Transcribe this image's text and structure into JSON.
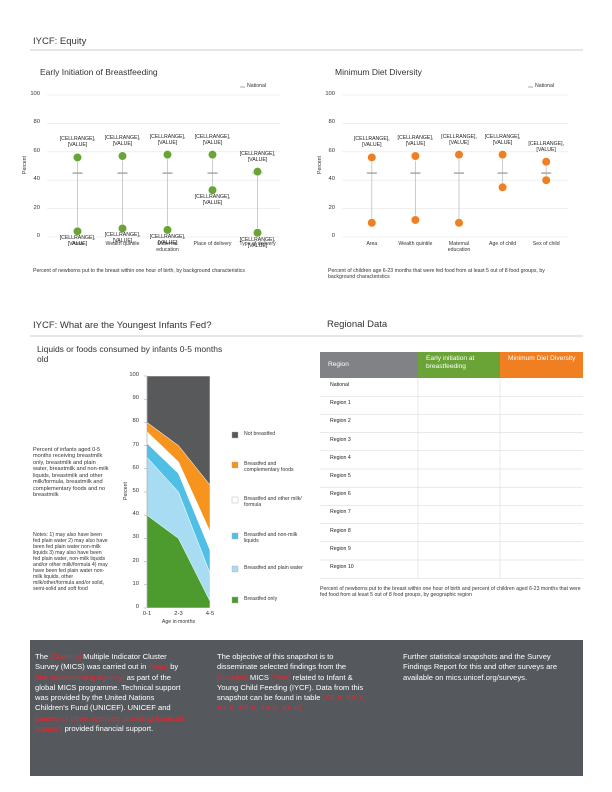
{
  "header": {
    "title": "IYCF: Equity",
    "section2": "IYCF: What are the Youngest Infants Fed?",
    "section3": "Regional Data"
  },
  "chart_data": [
    {
      "type": "dot",
      "title": "Early Initiation of Breastfeeding",
      "legend": "National",
      "ylabel": "Percent",
      "ylim": [
        0,
        100
      ],
      "yticks": [
        0,
        20,
        40,
        60,
        80,
        100
      ],
      "grid": true,
      "color": "#6aa436",
      "national_color": "#a7a9ac",
      "categories": [
        "Area",
        "Wealth quintile",
        "Maternal education",
        "Place of delivery",
        "Type of delivery"
      ],
      "national": [
        45,
        45,
        45,
        45,
        45
      ],
      "series": [
        {
          "values": [
            56,
            57,
            58,
            58,
            46
          ],
          "labels": [
            "[CELLRANGE], [VALUE]",
            "[CELLRANGE], [VALUE]",
            "[CELLRANGE], [VALUE]",
            "[CELLRANGE], [VALUE]",
            "[CELLRANGE], [VALUE]"
          ]
        },
        {
          "values": [
            4,
            6,
            5,
            33,
            3
          ],
          "labels": [
            "[CELLRANGE], [VALUE]",
            "[CELLRANGE], [VALUE]",
            "[CELLRANGE], [VALUE]",
            "[CELLRANGE], [VALUE]",
            "[CELLRANGE], [VALUE]"
          ]
        }
      ],
      "note": "Percent of newborns put to the breast within one hour of birth, by background characteristics"
    },
    {
      "type": "dot",
      "title": "Minimum Diet Diversity",
      "legend": "National",
      "ylabel": "Percent",
      "ylim": [
        0,
        100
      ],
      "yticks": [
        0,
        20,
        40,
        60,
        80,
        100
      ],
      "grid": true,
      "color": "#f07f22",
      "national_color": "#a7a9ac",
      "categories": [
        "Area",
        "Wealth quintile",
        "Maternal education",
        "Age of child",
        "Sex of child"
      ],
      "national": [
        45,
        45,
        45,
        45,
        45
      ],
      "series": [
        {
          "values": [
            56,
            57,
            58,
            58,
            53
          ],
          "labels": [
            "[CELLRANGE], [VALUE]",
            "[CELLRANGE], [VALUE]",
            "[CELLRANGE], [VALUE]",
            "[CELLRANGE], [VALUE]",
            "[CELLRANGE], [VALUE]"
          ]
        },
        {
          "values": [
            10,
            12,
            10,
            35,
            40
          ]
        }
      ],
      "note": "Percent of children age 6-23 months that were fed food from at least 5 out of 8 food groups, by background characteristics"
    },
    {
      "type": "area",
      "title": "Liquids or foods consumed by infants 0-5 months old",
      "ylabel": "Percent",
      "xlabel": "Age in months",
      "categories": [
        "0-1",
        "2-3",
        "4-5"
      ],
      "ylim": [
        0,
        100
      ],
      "yticks": [
        0,
        10,
        20,
        30,
        40,
        50,
        60,
        70,
        80,
        90,
        100
      ],
      "series": [
        {
          "name": "Breastfed only",
          "color": "#4d9a2e",
          "values": [
            40,
            30,
            3
          ]
        },
        {
          "name": "Breastfed and plain water",
          "color": "#a7dcf2",
          "values": [
            25,
            20,
            12
          ]
        },
        {
          "name": "Breastfed and non-milk liquids",
          "color": "#50bfe6",
          "values": [
            6,
            8,
            10
          ]
        },
        {
          "name": "Breastfed and other milk/ formula",
          "color": "#ffffff",
          "values": [
            5,
            5,
            8
          ]
        },
        {
          "name": "Breastfed and complementary foods",
          "color": "#f7941d",
          "values": [
            4,
            7,
            20
          ]
        },
        {
          "name": "Not breastfed",
          "color": "#58595b",
          "values": [
            20,
            30,
            47
          ]
        }
      ],
      "description": "Percent of infants aged 0-5 months receiving breastmilk only, breastmilk and plain water, breastmilk and non-milk liquids, breastmilk and other milk/formula, breastmilk and complementary foods and no breastmilk",
      "notes": "Notes: 1) may also have been fed plain water 2) may also have been fed plain water non-milk liquids 3) may also have been fed plain water, non-milk liquids and/or other milk/formula 4) may have been fed plain water non-milk liquids, other milk/other/formula and/or solid, semi-solid and soft food"
    }
  ],
  "table": {
    "header": [
      "Region",
      "Early initiation at breastfeeding",
      "Minimum Diet Diversity"
    ],
    "rows": [
      "National",
      "Region 1",
      "Region 2",
      "Region 3",
      "Region 4",
      "Region 5",
      "Region 6",
      "Region 7",
      "Region 8",
      "Region 9",
      "Region 10"
    ],
    "note": "Percent of newborns put to the breast within one hour of birth and percent of children aged 6-23 months that were fed food from at least 5 out of 8 food groups, by geographic region"
  },
  "footer": {
    "columns": [
      [
        {
          "text": "The "
        },
        {
          "text": "[Country]",
          "highlight": true
        },
        {
          "text": " Multiple Indicator Cluster Survey (MICS) was carried out in "
        },
        {
          "text": "[Year]",
          "highlight": true
        },
        {
          "text": " by "
        },
        {
          "text": "[the Implementing Agency]",
          "highlight": true
        },
        {
          "text": " as part of the global MICS programme. Technical support was provided by the United Nations Children's Fund (UNICEF). UNICEF and "
        },
        {
          "text": "[names of other agencies providing financial support]",
          "highlight": true
        },
        {
          "text": " provided financial support."
        }
      ],
      [
        {
          "text": "The objective of this snapshot is to disseminate selected findings from the "
        },
        {
          "text": "[Country]",
          "highlight": true
        },
        {
          "text": " MICS "
        },
        {
          "text": "[Year]",
          "highlight": true
        },
        {
          "text": " related to Infant & Young Child Feeding (IYCF). Data from this snapshot can be found in table "
        },
        {
          "text": "[XX.X, XX.X, XX.X, XX.X, XX.X, XX.X]",
          "highlight": true
        }
      ],
      [
        {
          "text": "Further statistical snapshots and the Survey Findings Report for this and other surveys are available on mics.unicef.org/surveys."
        }
      ]
    ]
  }
}
